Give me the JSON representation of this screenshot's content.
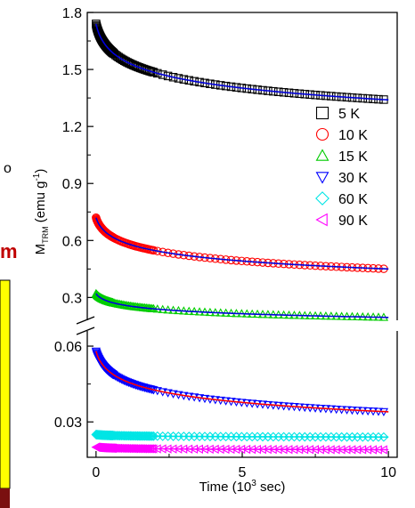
{
  "chart_data": {
    "type": "scatter",
    "xlabel": "Time (10³ sec)",
    "xlabel_parts": {
      "base": "Time (10",
      "sup": "3",
      "tail": " sec)"
    },
    "ylabel_parts": {
      "base": "M",
      "sub": "TRM",
      "mid": " (emu g",
      "sup": "-1",
      "tail": ")"
    },
    "xlim": [
      -0.3,
      10.3
    ],
    "x_ticks": [
      "0",
      "5",
      "10"
    ],
    "broken_y_axis": true,
    "upper_panel": {
      "ylim": [
        0.18,
        1.8
      ],
      "y_ticks": [
        "0.3",
        "0.6",
        "0.9",
        "1.2",
        "1.5",
        "1.8"
      ]
    },
    "lower_panel": {
      "ylim": [
        0.016,
        0.066
      ],
      "y_ticks": [
        "0.03",
        "0.06"
      ]
    },
    "legend_position": "right",
    "series": [
      {
        "name": "5 K",
        "panel": "upper",
        "marker": "square",
        "color": "#000000",
        "fit_color": "#0000dd",
        "m0": 1.74,
        "m_end": 1.34
      },
      {
        "name": "10 K",
        "panel": "upper",
        "marker": "circle",
        "color": "#ff0000",
        "fit_color": "#0000dd",
        "m0": 0.72,
        "m_end": 0.45
      },
      {
        "name": "15 K",
        "panel": "upper",
        "marker": "triangle-up",
        "color": "#00cc00",
        "fit_color": "#0000dd",
        "m0": 0.32,
        "m_end": 0.195
      },
      {
        "name": "30 K",
        "panel": "lower",
        "marker": "triangle-down",
        "color": "#0000ff",
        "fit_color": "#ff0000",
        "m0": 0.058,
        "m_end": 0.034
      },
      {
        "name": "60 K",
        "panel": "lower",
        "marker": "diamond",
        "color": "#00e5e5",
        "fit_color": "#00e5e5",
        "m0": 0.025,
        "m_end": 0.024
      },
      {
        "name": "90 K",
        "panel": "lower",
        "marker": "triangle-left",
        "color": "#ff00ff",
        "fit_color": "#ff00ff",
        "m0": 0.02,
        "m_end": 0.019
      }
    ],
    "side_fragments": {
      "left_letter": "m",
      "left_letter_color": "#c00000",
      "left_panel_color": "#ffff00",
      "left_panel_bottom_color": "#7a1010",
      "left_mark_text": "o"
    }
  }
}
